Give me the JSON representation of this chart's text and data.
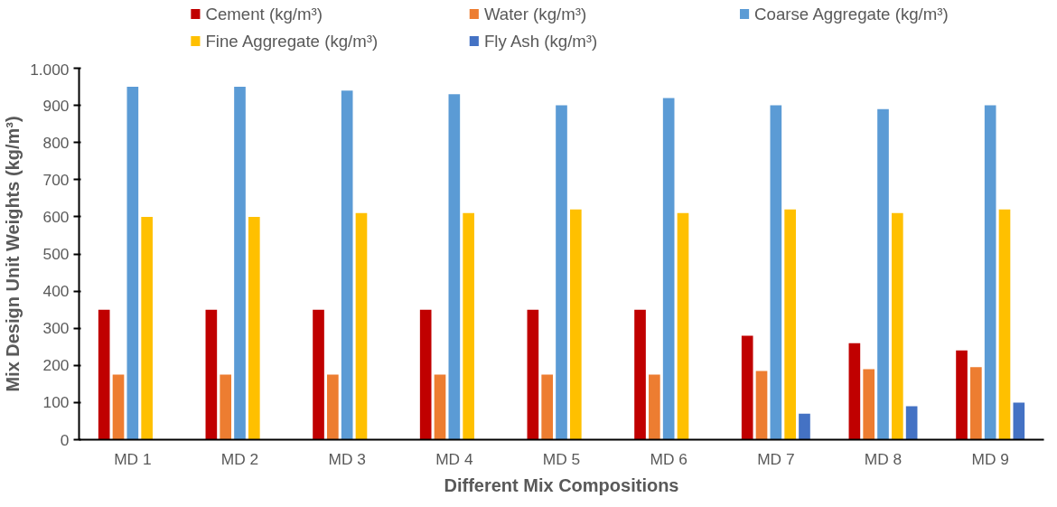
{
  "chart_data": {
    "type": "bar",
    "xlabel": "Different Mix Compositions",
    "ylabel": "Mix Design Unit Weights (kg/m³)",
    "categories": [
      "MD 1",
      "MD 2",
      "MD 3",
      "MD 4",
      "MD 5",
      "MD 6",
      "MD 7",
      "MD 8",
      "MD 9"
    ],
    "series": [
      {
        "name": "Cement (kg/m³)",
        "color": "#c00000",
        "values": [
          350,
          350,
          350,
          350,
          350,
          350,
          280,
          260,
          240
        ]
      },
      {
        "name": "Water (kg/m³)",
        "color": "#ed7d31",
        "values": [
          175,
          175,
          175,
          175,
          175,
          175,
          185,
          190,
          195
        ]
      },
      {
        "name": "Coarse Aggregate (kg/m³)",
        "color": "#5b9bd5",
        "values": [
          950,
          950,
          940,
          930,
          900,
          920,
          900,
          890,
          900
        ]
      },
      {
        "name": "Fine Aggregate (kg/m³)",
        "color": "#ffc000",
        "values": [
          600,
          600,
          610,
          610,
          620,
          610,
          620,
          610,
          620
        ]
      },
      {
        "name": "Fly Ash (kg/m³)",
        "color": "#4472c4",
        "values": [
          null,
          null,
          null,
          null,
          null,
          null,
          70,
          90,
          100
        ]
      }
    ],
    "ylim": [
      0,
      1000
    ],
    "yticks": [
      0,
      100,
      200,
      300,
      400,
      500,
      600,
      700,
      800,
      900,
      {
        "value": 1000,
        "label": "1.000"
      }
    ],
    "grid": false,
    "legend": "top"
  }
}
